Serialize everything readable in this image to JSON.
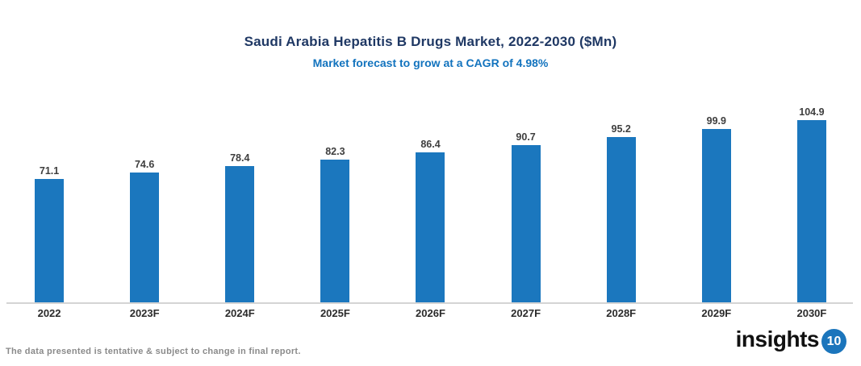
{
  "header": {
    "title": "Saudi Arabia Hepatitis B Drugs Market, 2022-2030 ($Mn)",
    "subtitle": "Market forecast to grow at a CAGR of 4.98%"
  },
  "chart_data": {
    "type": "bar",
    "categories": [
      "2022",
      "2023F",
      "2024F",
      "2025F",
      "2026F",
      "2027F",
      "2028F",
      "2029F",
      "2030F"
    ],
    "values": [
      71.1,
      74.6,
      78.4,
      82.3,
      86.4,
      90.7,
      95.2,
      99.9,
      104.9
    ],
    "title": "Saudi Arabia Hepatitis B Drugs Market, 2022-2030 ($Mn)",
    "subtitle": "Market forecast to grow at a CAGR of 4.98%",
    "xlabel": "",
    "ylabel": "",
    "ylim": [
      0,
      110
    ],
    "data_labels": true,
    "legend": false,
    "grid": false,
    "bar_color": "#1B77BE"
  },
  "footer": {
    "disclaimer": "The data presented is tentative & subject to change in final report."
  },
  "logo": {
    "text": "insights",
    "badge": "10"
  },
  "colors": {
    "bar": "#1B77BE",
    "title": "#1F3864",
    "subtitle": "#1273BE",
    "axis_line": "#D4D4D4",
    "value_label": "#3E3E3E",
    "category_label": "#2B2B2B",
    "footer_text": "#8A8A8A",
    "logo_badge": "#1B75BC"
  }
}
